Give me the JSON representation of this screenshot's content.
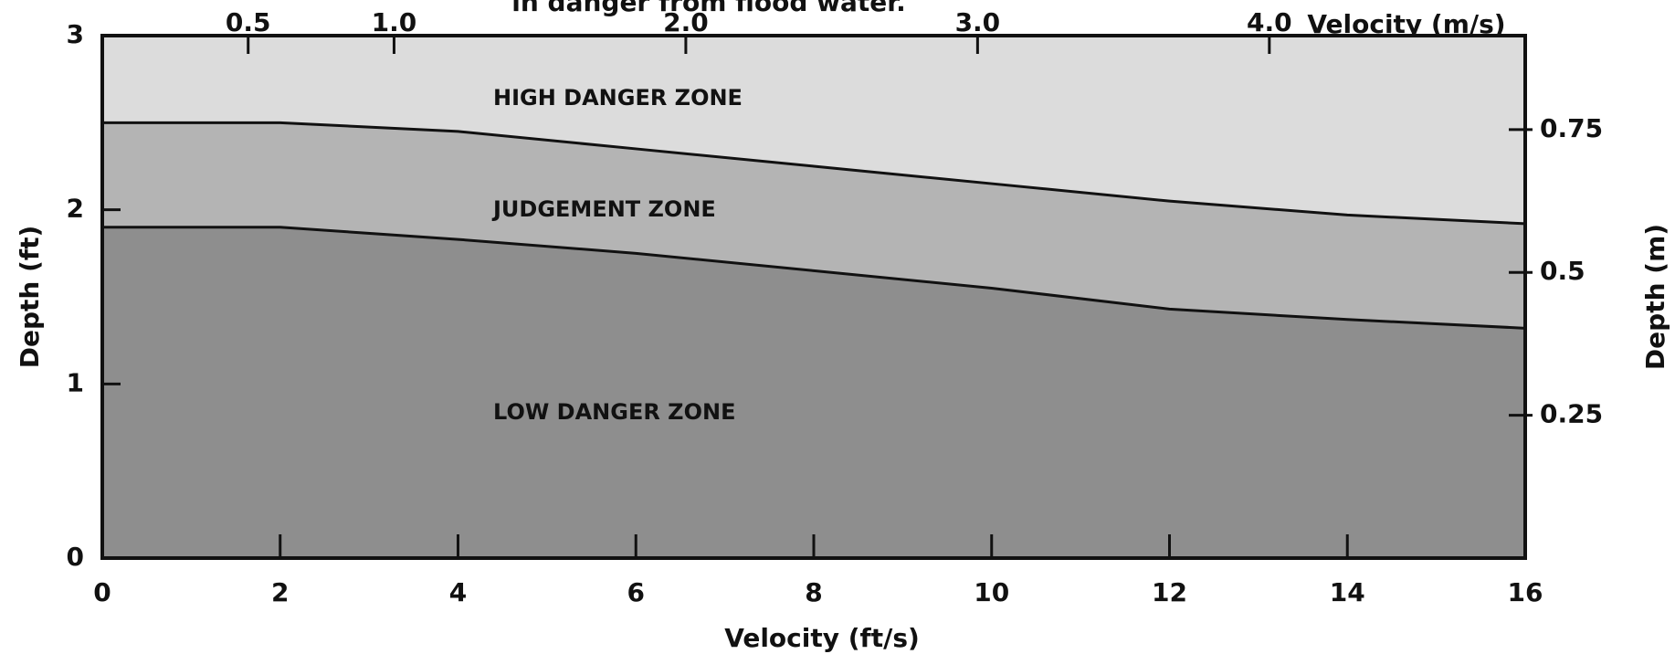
{
  "chart_data": {
    "type": "area",
    "title": "in danger from flood water.",
    "x_label": "Velocity (ft/s)",
    "y_label": "Depth (ft)",
    "x2_label": "Velocity (m/s)",
    "y2_label": "Depth (m)",
    "x": [
      0,
      2,
      4,
      6,
      8,
      10,
      12,
      14,
      16
    ],
    "series": [
      {
        "name": "JUDGEMENT ZONE",
        "color": "#b4b4b4",
        "values": [
          2.5,
          2.5,
          2.45,
          2.35,
          2.25,
          2.15,
          2.05,
          1.97,
          1.92
        ]
      },
      {
        "name": "LOW DANGER ZONE",
        "color": "#8e8e8e",
        "values": [
          1.9,
          1.9,
          1.83,
          1.75,
          1.65,
          1.55,
          1.43,
          1.37,
          1.32
        ]
      }
    ],
    "annotations": [
      "HIGH DANGER ZONE"
    ],
    "background_color": "#dcdcdc",
    "xlim": [
      0,
      16
    ],
    "xticks": [
      0,
      2,
      4,
      6,
      8,
      10,
      12,
      14,
      16
    ],
    "ylim": [
      0,
      3
    ],
    "yticks": [
      0,
      1,
      2,
      3
    ],
    "x2lim": [
      0,
      4.877
    ],
    "x2ticks": [
      0.5,
      {
        "value": 1,
        "label": "1.0"
      },
      {
        "value": 2,
        "label": "2.0"
      },
      {
        "value": 3,
        "label": "3.0"
      },
      {
        "value": 4,
        "label": "4.0"
      }
    ],
    "y2lim": [
      0,
      0.9144
    ],
    "y2ticks": [
      0.25,
      0.5,
      0.75
    ]
  }
}
